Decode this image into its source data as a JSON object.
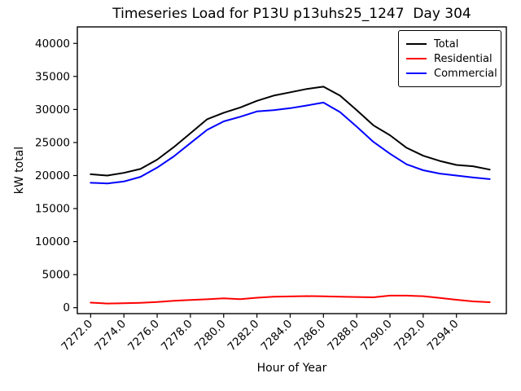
{
  "chart_data": {
    "type": "line",
    "title": "Timeseries Load for P13U p13uhs25_1247  Day 304",
    "xlabel": "Hour of Year",
    "ylabel": "kW total",
    "xlim": [
      7271.2,
      7297.0
    ],
    "ylim": [
      -900,
      42500
    ],
    "grid": false,
    "legend_position": "upper right",
    "xticks": [
      7272,
      7274,
      7276,
      7278,
      7280,
      7282,
      7284,
      7286,
      7288,
      7290,
      7292,
      7294
    ],
    "xtick_labels": [
      "7272.0",
      "7274.0",
      "7276.0",
      "7278.0",
      "7280.0",
      "7282.0",
      "7284.0",
      "7286.0",
      "7288.0",
      "7290.0",
      "7292.0",
      "7294.0"
    ],
    "yticks": [
      0,
      5000,
      10000,
      15000,
      20000,
      25000,
      30000,
      35000,
      40000
    ],
    "ytick_labels": [
      "0",
      "5000",
      "10000",
      "15000",
      "20000",
      "25000",
      "30000",
      "35000",
      "40000"
    ],
    "x": [
      7272,
      7273,
      7274,
      7275,
      7276,
      7277,
      7278,
      7279,
      7280,
      7281,
      7282,
      7283,
      7284,
      7285,
      7286,
      7287,
      7288,
      7289,
      7290,
      7291,
      7292,
      7293,
      7294,
      7295,
      7296
    ],
    "series": [
      {
        "name": "Total",
        "color": "#000000",
        "values": [
          20200,
          20000,
          20400,
          21000,
          22400,
          24300,
          26400,
          28500,
          29500,
          30300,
          31300,
          32100,
          32600,
          33100,
          33450,
          32100,
          29900,
          27600,
          26100,
          24200,
          23000,
          22200,
          21600,
          21400,
          20900
        ]
      },
      {
        "name": "Residential",
        "color": "#ff0000",
        "values": [
          760,
          630,
          660,
          740,
          860,
          1050,
          1160,
          1270,
          1400,
          1300,
          1500,
          1650,
          1700,
          1750,
          1720,
          1650,
          1620,
          1560,
          1830,
          1830,
          1740,
          1480,
          1200,
          950,
          820
        ]
      },
      {
        "name": "Commercial",
        "color": "#0000ff",
        "values": [
          18900,
          18800,
          19100,
          19800,
          21200,
          22900,
          24900,
          26900,
          28200,
          28900,
          29700,
          29900,
          30200,
          30600,
          31050,
          29600,
          27400,
          25100,
          23300,
          21700,
          20800,
          20300,
          20000,
          19700,
          19450
        ]
      }
    ]
  }
}
